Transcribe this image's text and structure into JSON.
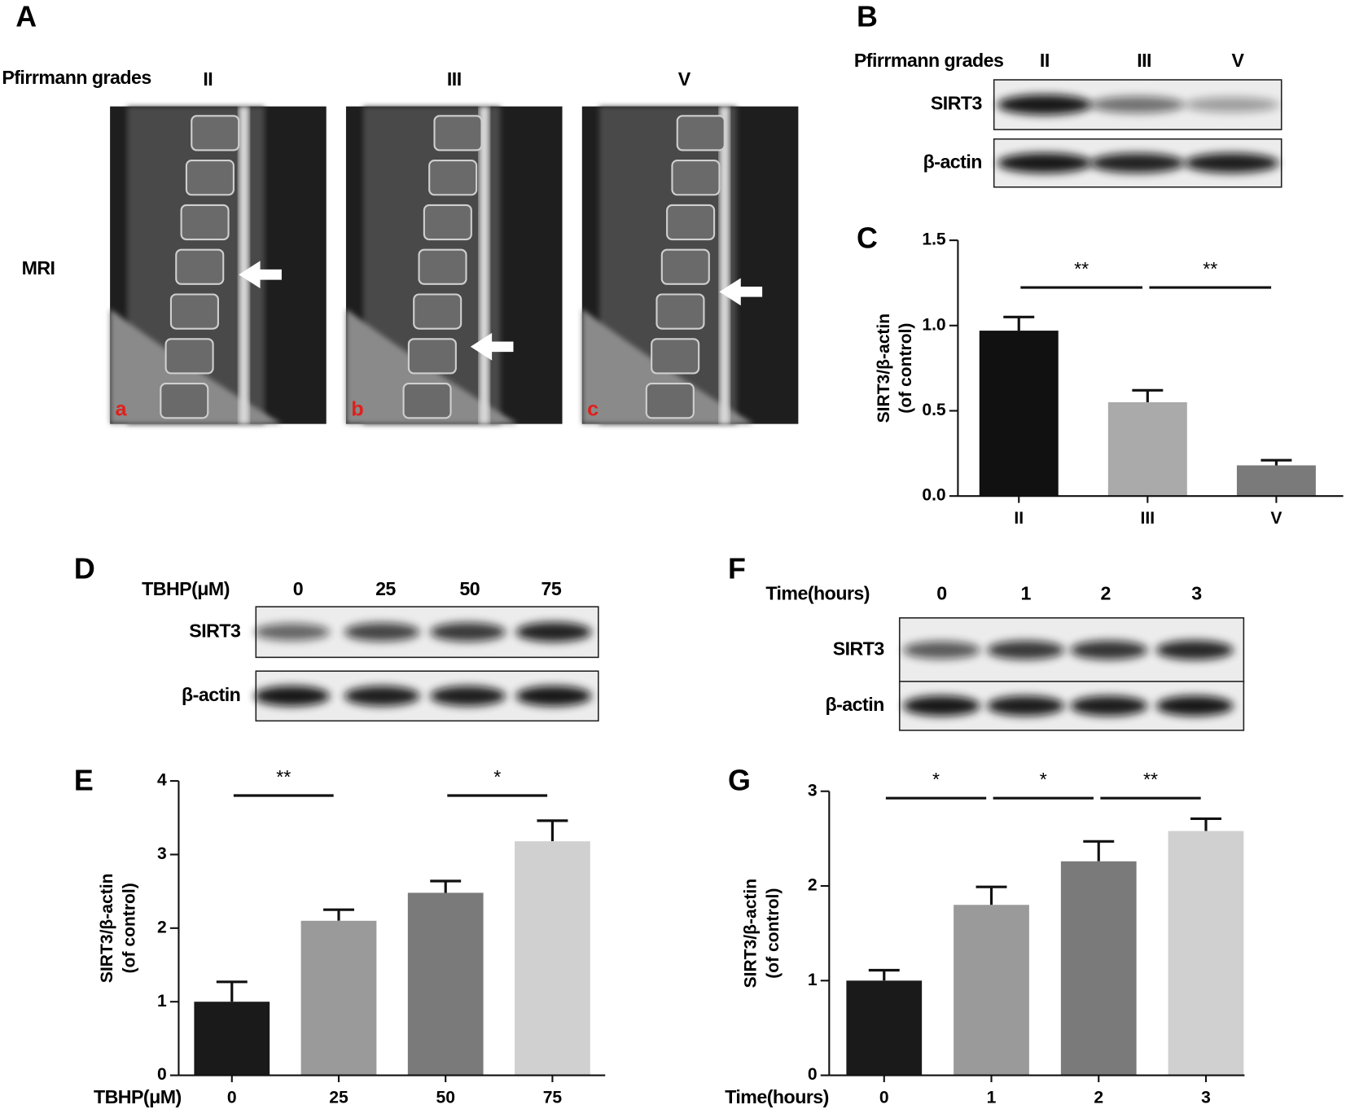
{
  "panel_labels": [
    "A",
    "B",
    "C",
    "D",
    "E",
    "F",
    "G"
  ],
  "mri": {
    "header": "Pfirrmann grades",
    "grades": [
      "II",
      "III",
      "V"
    ],
    "row_label": "MRI",
    "image_labels": [
      "a",
      "b",
      "c"
    ]
  },
  "blots": [
    {
      "header": "Pfirrmann grades",
      "lanes": [
        "II",
        "III",
        "V"
      ],
      "rows": [
        "SIRT3",
        "β-actin"
      ]
    },
    {
      "header": "TBHP(μM)",
      "lanes": [
        "0",
        "25",
        "50",
        "75"
      ],
      "rows": [
        "SIRT3",
        "β-actin"
      ]
    },
    {
      "header": "Time(hours)",
      "lanes": [
        "0",
        "1",
        "2",
        "3"
      ],
      "rows": [
        "SIRT3",
        "β-actin"
      ]
    }
  ],
  "chart_data": [
    {
      "type": "bar",
      "categories": [
        "II",
        "III",
        "V"
      ],
      "values": [
        0.97,
        0.55,
        0.18
      ],
      "errors": [
        0.08,
        0.07,
        0.03
      ],
      "colors": [
        "#111111",
        "#aaaaaa",
        "#7a7a7a"
      ],
      "ylabel": [
        "SIRT3/β-actin",
        "(of control)"
      ],
      "ylim": [
        0,
        1.5
      ],
      "yticks": [
        {
          "value": 0,
          "label": "0.0"
        },
        0.5,
        {
          "value": 1,
          "label": "1.0"
        },
        1.5
      ],
      "annotations": [
        {
          "text": "**",
          "from": "II",
          "to": "III"
        },
        {
          "text": "**",
          "from": "III",
          "to": "V"
        }
      ]
    },
    {
      "type": "bar",
      "categories": [
        "0",
        "25",
        "50",
        "75"
      ],
      "values": [
        1.0,
        2.1,
        2.48,
        3.18
      ],
      "errors": [
        0.27,
        0.15,
        0.16,
        0.28
      ],
      "colors": [
        "#1a1a1a",
        "#9a9a9a",
        "#7a7a7a",
        "#d0d0d0"
      ],
      "ylabel": [
        "SIRT3/β-actin",
        "(of control)"
      ],
      "xlabel": "TBHP(μM)",
      "ylim": [
        0,
        4
      ],
      "yticks": [
        0,
        1,
        2,
        3,
        4
      ],
      "annotations": [
        {
          "text": "**",
          "from": "0",
          "to": "25"
        },
        {
          "text": "*",
          "from": "50",
          "to": "75"
        }
      ]
    },
    {
      "type": "bar",
      "categories": [
        "0",
        "1",
        "2",
        "3"
      ],
      "values": [
        1.0,
        1.8,
        2.26,
        2.58
      ],
      "errors": [
        0.11,
        0.19,
        0.21,
        0.13
      ],
      "colors": [
        "#1a1a1a",
        "#9a9a9a",
        "#7a7a7a",
        "#d0d0d0"
      ],
      "ylabel": [
        "SIRT3/β-actin",
        "(of control)"
      ],
      "xlabel": "Time(hours)",
      "ylim": [
        0,
        3
      ],
      "yticks": [
        0,
        1,
        2,
        3
      ],
      "annotations": [
        {
          "text": "*",
          "from": "0",
          "to": "1"
        },
        {
          "text": "*",
          "from": "1",
          "to": "2"
        },
        {
          "text": "**",
          "from": "2",
          "to": "3"
        }
      ]
    }
  ]
}
